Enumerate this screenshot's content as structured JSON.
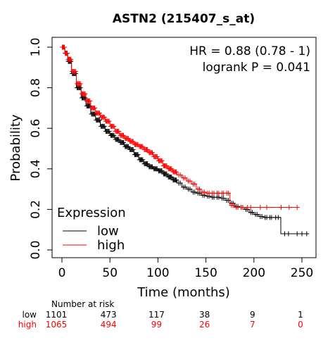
{
  "chart_data": {
    "type": "line",
    "subtype": "kaplan-meier survival curve",
    "title": "ASTN2 (215407_s_at)",
    "xlabel": "Time (months)",
    "ylabel": "Probability",
    "xlim": [
      0,
      260
    ],
    "ylim": [
      0,
      1
    ],
    "xticks": [
      "0",
      "50",
      "100",
      "150",
      "200",
      "250"
    ],
    "yticks": [
      "0.0",
      "0.2",
      "0.4",
      "0.6",
      "0.8",
      "1.0"
    ],
    "annotations": {
      "hr": "HR = 0.88 (0.78 - 1)",
      "logrank": "logrank P = 0.041"
    },
    "legend": {
      "title": "Expression",
      "placement": "bottom-left",
      "items": [
        "low",
        "high"
      ]
    },
    "grid": false,
    "series": [
      {
        "name": "low",
        "color": "#000000",
        "x": [
          0,
          3,
          6,
          10,
          15,
          20,
          25,
          30,
          35,
          40,
          45,
          50,
          55,
          60,
          65,
          70,
          75,
          80,
          85,
          90,
          95,
          100,
          105,
          110,
          115,
          120,
          125,
          130,
          135,
          140,
          145,
          150,
          155,
          160,
          165,
          170,
          175,
          180,
          185,
          190,
          195,
          200,
          205,
          210,
          215,
          220,
          228,
          240,
          255
        ],
        "y": [
          1.0,
          0.97,
          0.93,
          0.87,
          0.8,
          0.75,
          0.71,
          0.67,
          0.64,
          0.61,
          0.585,
          0.565,
          0.545,
          0.53,
          0.51,
          0.495,
          0.47,
          0.445,
          0.425,
          0.41,
          0.4,
          0.39,
          0.375,
          0.36,
          0.345,
          0.33,
          0.31,
          0.3,
          0.285,
          0.28,
          0.27,
          0.265,
          0.26,
          0.26,
          0.255,
          0.245,
          0.23,
          0.215,
          0.21,
          0.2,
          0.185,
          0.175,
          0.165,
          0.16,
          0.16,
          0.16,
          0.08,
          0.08,
          0.08
        ]
      },
      {
        "name": "high",
        "color": "#ff0000",
        "x": [
          0,
          3,
          6,
          10,
          15,
          20,
          25,
          30,
          35,
          40,
          45,
          50,
          55,
          60,
          65,
          70,
          75,
          80,
          85,
          90,
          95,
          100,
          105,
          110,
          115,
          120,
          125,
          130,
          135,
          140,
          145,
          150,
          155,
          160,
          165,
          170,
          175,
          180,
          185,
          190,
          200,
          220,
          245
        ],
        "y": [
          1.0,
          0.97,
          0.94,
          0.88,
          0.82,
          0.77,
          0.735,
          0.7,
          0.675,
          0.655,
          0.635,
          0.61,
          0.585,
          0.565,
          0.55,
          0.535,
          0.52,
          0.51,
          0.495,
          0.48,
          0.46,
          0.44,
          0.415,
          0.4,
          0.385,
          0.37,
          0.355,
          0.34,
          0.325,
          0.3,
          0.285,
          0.28,
          0.28,
          0.28,
          0.28,
          0.28,
          0.22,
          0.21,
          0.21,
          0.21,
          0.21,
          0.21,
          0.21
        ]
      }
    ],
    "risk_table": {
      "header": "Number at risk",
      "times": [
        0,
        50,
        100,
        150,
        200,
        250
      ],
      "rows": [
        {
          "label": "low",
          "color": "#000000",
          "values": [
            "1101",
            "473",
            "117",
            "38",
            "9",
            "1"
          ]
        },
        {
          "label": "high",
          "color": "#ff0000",
          "values": [
            "1065",
            "494",
            "99",
            "26",
            "7",
            "0"
          ]
        }
      ]
    }
  }
}
